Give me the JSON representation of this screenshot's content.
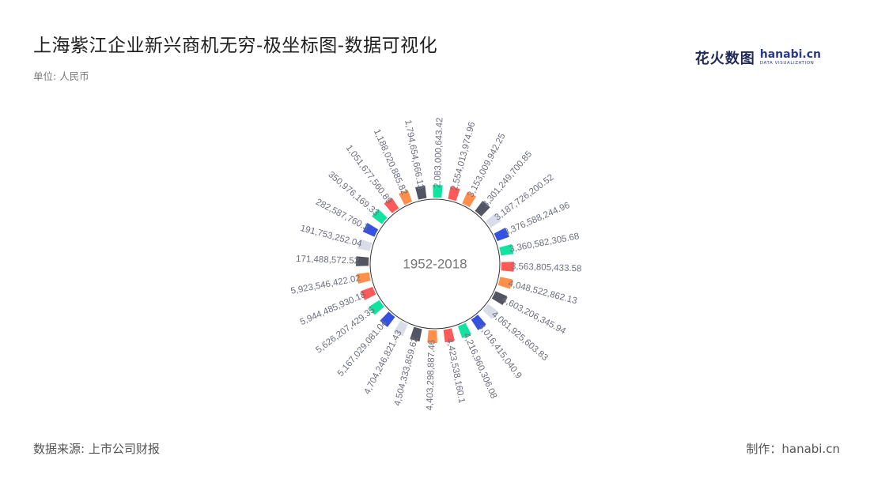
{
  "title": "上海紫江企业新兴商机无穷-极坐标图-数据可视化",
  "unit_label": "单位: 人民币",
  "logo": {
    "cn": "花火数图",
    "en": "hanabi.cn",
    "sub": "DATA VISUALIZATION"
  },
  "source": "数据来源: 上市公司财报",
  "credit": "制作：hanabi.cn",
  "colors": {
    "palette": [
      "#12e3a0",
      "#ff5a5a",
      "#ff8f4a",
      "#525562",
      "#d8dde8",
      "#3551e0"
    ]
  },
  "chart_data": {
    "type": "bar",
    "coordinate": "polar",
    "center_label": "1952-2018",
    "labels": [
      "2,083,000,643.42",
      "2,554,013,974.96",
      "3,153,009,942.25",
      "3,301,249,700.85",
      "3,187,726,200.52",
      "3,376,588,244.96",
      "3,360,582,305.68",
      "3,563,805,433.58",
      "4,048,522,862.13",
      "4,603,206,345.94",
      "4,061,925,603.83",
      "4,016,415,040.9",
      "4,216,960,306.08",
      "4,423,538,160.1",
      "4,403,298,887.46",
      "4,504,333,859.62",
      "4,704,246,821.43",
      "5,167,029,081.04",
      "5,626,207,429.35",
      "5,944,485,930.18",
      "5,923,546,422.02",
      "171,488,572.52",
      "191,753,252.04",
      "282,587,760.3",
      "350,976,169.33",
      "1,051,677,560.89",
      "1,188,020,885.82",
      "1,794,654,666.13"
    ],
    "values": [
      2083000643.42,
      2554013974.96,
      3153009942.25,
      3301249700.85,
      3187726200.52,
      3376588244.96,
      3360582305.68,
      3563805433.58,
      4048522862.13,
      4603206345.94,
      4061925603.83,
      4016415040.9,
      4216960306.08,
      4423538160.1,
      4403298887.46,
      4504333859.62,
      4704246821.43,
      5167029081.04,
      5626207429.35,
      5944485930.18,
      5923546422.02,
      171488572.52,
      191753252.04,
      282587760.3,
      350976169.33,
      1051677560.89,
      1188020885.82,
      1794654666.13
    ]
  }
}
